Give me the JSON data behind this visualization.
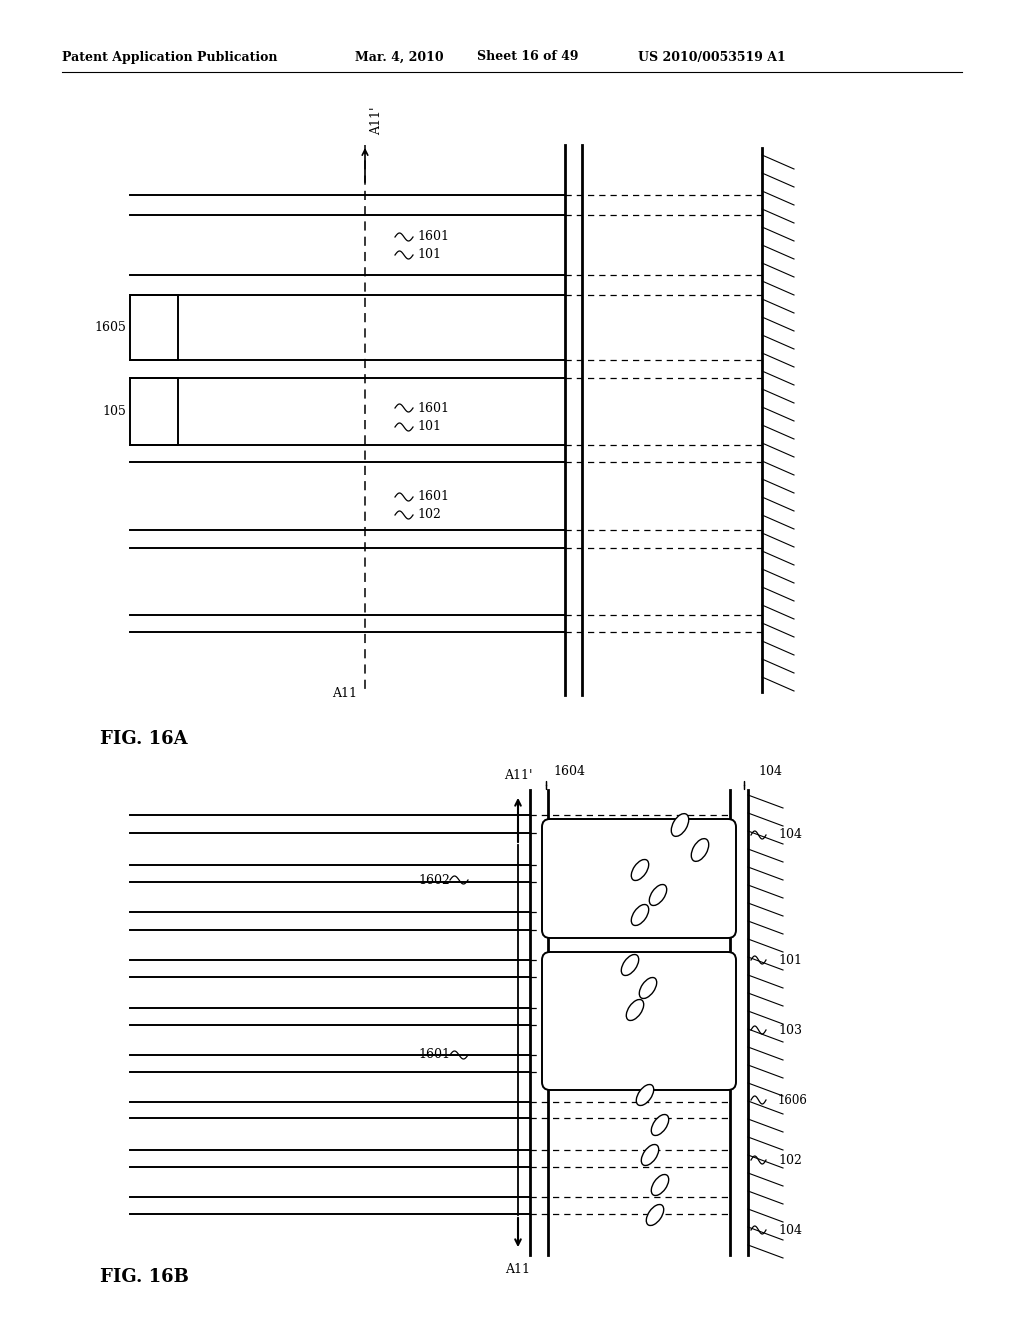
{
  "bg_color": "#ffffff",
  "header_text": "Patent Application Publication",
  "header_date": "Mar. 4, 2010",
  "header_sheet": "Sheet 16 of 49",
  "header_patent": "US 2010/0053519 A1",
  "fig_a_label": "FIG. 16A",
  "fig_b_label": "FIG. 16B"
}
